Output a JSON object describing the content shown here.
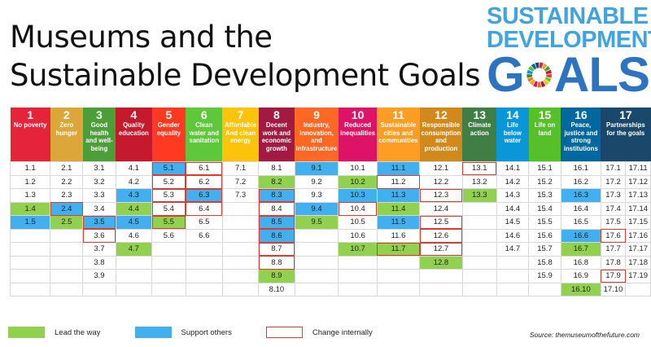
{
  "title_line1": "Museums and the",
  "title_line2": "Sustainable Development Goals",
  "logo": {
    "line1": "SUSTAINABLE",
    "line2": "DEVELOPMENT",
    "line3a": "G",
    "line3b": "ALS"
  },
  "colors": {
    "lead": "#92d050",
    "support": "#42b0ef",
    "change": "#e03a2e"
  },
  "goals": [
    {
      "num": "1",
      "label": "No poverty",
      "color": "#e5243b",
      "width": 52
    },
    {
      "num": "2",
      "label": "Zero hunger",
      "color": "#dda63a",
      "width": 41
    },
    {
      "num": "3",
      "label": "Good health and well-being",
      "color": "#4c9f38",
      "width": 42
    },
    {
      "num": "4",
      "label": "Quality education",
      "color": "#c5192d",
      "width": 44
    },
    {
      "num": "5",
      "label": "Gender equality",
      "color": "#ff3a21",
      "width": 42
    },
    {
      "num": "6",
      "label": "Clean water and sanitation",
      "color": "#5ec83a",
      "width": 45
    },
    {
      "num": "7",
      "label": "Affordable And clean energy",
      "color": "#fcc30b",
      "width": 43
    },
    {
      "num": "8",
      "label": "Decent work and economic growth",
      "color": "#a21942",
      "width": 44
    },
    {
      "num": "9",
      "label": "Industry, innovation, and infrastructure",
      "color": "#fd6925",
      "width": 52
    },
    {
      "num": "10",
      "label": "Reduced inequalities",
      "color": "#dd1367",
      "width": 46
    },
    {
      "num": "11",
      "label": "Sustainable cities and communities",
      "color": "#fd9d24",
      "width": 51
    },
    {
      "num": "12",
      "label": "Responsible consumption and production",
      "color": "#d2891c",
      "width": 51
    },
    {
      "num": "13",
      "label": "Climate action",
      "color": "#3f7e44",
      "width": 43
    },
    {
      "num": "14",
      "label": "Life below water",
      "color": "#0a97d9",
      "width": 41
    },
    {
      "num": "15",
      "label": "Life on land",
      "color": "#56c02b",
      "width": 43
    },
    {
      "num": "16",
      "label": "Peace, justice and strong institutions",
      "color": "#00689d",
      "width": 48
    },
    {
      "num": "17",
      "label": "Partnerships for the goals",
      "color": "#19486a",
      "width": 62
    }
  ],
  "columns": [
    [
      [
        "1.1",
        ""
      ],
      [
        "1.2",
        ""
      ],
      [
        "1.3",
        ""
      ],
      [
        "1.4",
        "green"
      ],
      [
        "1.5",
        "blue"
      ],
      [
        "",
        ""
      ],
      [
        "",
        ""
      ],
      [
        "",
        ""
      ],
      [
        "",
        ""
      ],
      [
        "",
        ""
      ]
    ],
    [
      [
        "2.1",
        ""
      ],
      [
        "2.2",
        ""
      ],
      [
        "2.3",
        ""
      ],
      [
        "2.4",
        "blue red"
      ],
      [
        "2.5",
        "green"
      ],
      [
        "",
        ""
      ],
      [
        "",
        ""
      ],
      [
        "",
        ""
      ],
      [
        "",
        ""
      ],
      [
        "",
        ""
      ]
    ],
    [
      [
        "3.1",
        ""
      ],
      [
        "3.2",
        ""
      ],
      [
        "3.3",
        ""
      ],
      [
        "3.4",
        ""
      ],
      [
        "3.5",
        "blue red"
      ],
      [
        "3.6",
        "red"
      ],
      [
        "3.7",
        ""
      ],
      [
        "3.8",
        ""
      ],
      [
        "3.9",
        ""
      ],
      [
        "",
        ""
      ]
    ],
    [
      [
        "4.1",
        ""
      ],
      [
        "4.2",
        ""
      ],
      [
        "4.3",
        "blue"
      ],
      [
        "4.4",
        "green"
      ],
      [
        "4.5",
        "blue"
      ],
      [
        "4.6",
        ""
      ],
      [
        "4.7",
        "green"
      ],
      [
        "",
        ""
      ],
      [
        "",
        ""
      ],
      [
        "",
        ""
      ]
    ],
    [
      [
        "5.1",
        "blue red"
      ],
      [
        "5.2",
        "red"
      ],
      [
        "5.3",
        "red"
      ],
      [
        "5.4",
        "red"
      ],
      [
        "5.5",
        "green red"
      ],
      [
        "5.6",
        ""
      ],
      [
        "",
        ""
      ],
      [
        "",
        ""
      ],
      [
        "",
        ""
      ],
      [
        "",
        ""
      ]
    ],
    [
      [
        "6.1",
        "red"
      ],
      [
        "6.2",
        "red"
      ],
      [
        "6.3",
        "blue red"
      ],
      [
        "6.4",
        "red"
      ],
      [
        "6.5",
        ""
      ],
      [
        "6.6",
        ""
      ],
      [
        "",
        ""
      ],
      [
        "",
        ""
      ],
      [
        "",
        ""
      ],
      [
        "",
        ""
      ]
    ],
    [
      [
        "7.1",
        ""
      ],
      [
        "7.2",
        ""
      ],
      [
        "7.3",
        ""
      ],
      [
        "",
        ""
      ],
      [
        "",
        ""
      ],
      [
        "",
        ""
      ],
      [
        "",
        ""
      ],
      [
        "",
        ""
      ],
      [
        "",
        ""
      ],
      [
        "",
        ""
      ]
    ],
    [
      [
        "8.1",
        ""
      ],
      [
        "8.2",
        "green"
      ],
      [
        "8.3",
        "blue red"
      ],
      [
        "8.4",
        "red"
      ],
      [
        "8.5",
        "blue red"
      ],
      [
        "8.6",
        "blue red"
      ],
      [
        "8.7",
        "red"
      ],
      [
        "8.8",
        "red"
      ],
      [
        "8.9",
        "green"
      ],
      [
        "8.10",
        ""
      ]
    ],
    [
      [
        "9.1",
        "blue"
      ],
      [
        "9.2",
        ""
      ],
      [
        "9.3",
        ""
      ],
      [
        "9.4",
        "blue"
      ],
      [
        "9.5",
        "green"
      ],
      [
        "",
        ""
      ],
      [
        "",
        ""
      ],
      [
        "",
        ""
      ],
      [
        "",
        ""
      ],
      [
        "",
        ""
      ]
    ],
    [
      [
        "10.1",
        ""
      ],
      [
        "10.2",
        "green"
      ],
      [
        "10.3",
        "blue"
      ],
      [
        "10.4",
        "red"
      ],
      [
        "10.5",
        ""
      ],
      [
        "10.6",
        ""
      ],
      [
        "10.7",
        "green"
      ],
      [
        "",
        ""
      ],
      [
        "",
        ""
      ],
      [
        "",
        ""
      ]
    ],
    [
      [
        "11.1",
        "blue"
      ],
      [
        "11.2",
        "red"
      ],
      [
        "11.3",
        "blue"
      ],
      [
        "11.4",
        "green"
      ],
      [
        "11.5",
        "blue"
      ],
      [
        "11.6",
        ""
      ],
      [
        "11.7",
        "green red"
      ],
      [
        "",
        ""
      ],
      [
        "",
        ""
      ],
      [
        "",
        ""
      ]
    ],
    [
      [
        "12.1",
        ""
      ],
      [
        "12.2",
        ""
      ],
      [
        "12.3",
        "red"
      ],
      [
        "12.4",
        ""
      ],
      [
        "12.5",
        "red"
      ],
      [
        "12.6",
        "red"
      ],
      [
        "12.7",
        "red"
      ],
      [
        "12.8",
        "green"
      ],
      [
        "",
        ""
      ],
      [
        "",
        ""
      ]
    ],
    [
      [
        "13.1",
        "red"
      ],
      [
        "13.2",
        ""
      ],
      [
        "13.3",
        "green"
      ],
      [
        "",
        ""
      ],
      [
        "",
        ""
      ],
      [
        "",
        ""
      ],
      [
        "",
        ""
      ],
      [
        "",
        ""
      ],
      [
        "",
        ""
      ],
      [
        "",
        ""
      ]
    ],
    [
      [
        "14.1",
        ""
      ],
      [
        "14.2",
        ""
      ],
      [
        "14.3",
        ""
      ],
      [
        "14.4",
        ""
      ],
      [
        "14.5",
        ""
      ],
      [
        "14.6",
        ""
      ],
      [
        "14.7",
        ""
      ],
      [
        "",
        ""
      ],
      [
        "",
        ""
      ],
      [
        "",
        ""
      ]
    ],
    [
      [
        "15.1",
        ""
      ],
      [
        "15.2",
        ""
      ],
      [
        "15.3",
        ""
      ],
      [
        "15.4",
        ""
      ],
      [
        "15.5",
        ""
      ],
      [
        "15.6",
        ""
      ],
      [
        "15.7",
        ""
      ],
      [
        "15.8",
        ""
      ],
      [
        "15.9",
        ""
      ],
      [
        "",
        ""
      ]
    ],
    [
      [
        "16.1",
        ""
      ],
      [
        "16.2",
        ""
      ],
      [
        "16.3",
        "blue"
      ],
      [
        "16.4",
        ""
      ],
      [
        "16.5",
        ""
      ],
      [
        "16.6",
        "blue"
      ],
      [
        "16.7",
        "green"
      ],
      [
        "16.8",
        ""
      ],
      [
        "16.9",
        ""
      ],
      [
        "16.10",
        "green"
      ]
    ],
    [
      [
        "17.1",
        ""
      ],
      [
        "17.2",
        ""
      ],
      [
        "17.3",
        ""
      ],
      [
        "17.4",
        ""
      ],
      [
        "17.5",
        ""
      ],
      [
        "17.6",
        "red"
      ],
      [
        "17.7",
        ""
      ],
      [
        "17.8",
        ""
      ],
      [
        "17.9",
        "red"
      ],
      [
        "17.10",
        ""
      ]
    ],
    [
      [
        "17.11",
        ""
      ],
      [
        "17.12",
        ""
      ],
      [
        "17.13",
        ""
      ],
      [
        "17.14",
        ""
      ],
      [
        "17.15",
        ""
      ],
      [
        "17.16",
        ""
      ],
      [
        "17.17",
        ""
      ],
      [
        "17.18",
        ""
      ],
      [
        "17.19",
        ""
      ],
      [
        "",
        ""
      ]
    ]
  ],
  "legend": [
    {
      "label": "Lead the way",
      "type": "lead"
    },
    {
      "label": "Support others",
      "type": "support"
    },
    {
      "label": "Change internally",
      "type": "change"
    }
  ],
  "source": "Source: themuseumofthefuture.com"
}
